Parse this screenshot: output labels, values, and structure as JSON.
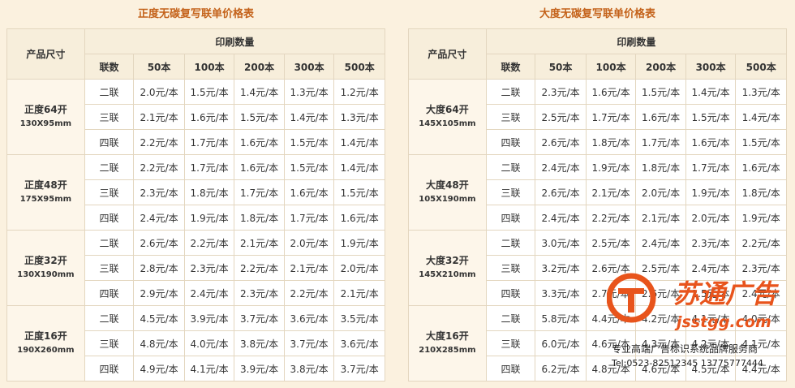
{
  "tables": [
    {
      "title": "正度无碳复写联单价格表",
      "header": {
        "size": "产品尺寸",
        "quantity": "印刷数量",
        "sets": "联数",
        "columns": [
          "50本",
          "100本",
          "200本",
          "300本",
          "500本"
        ]
      },
      "groups": [
        {
          "name": "正度64开",
          "dims": "130X95mm",
          "rows": [
            {
              "sets": "二联",
              "prices": [
                "2.0元/本",
                "1.5元/本",
                "1.4元/本",
                "1.3元/本",
                "1.2元/本"
              ]
            },
            {
              "sets": "三联",
              "prices": [
                "2.1元/本",
                "1.6元/本",
                "1.5元/本",
                "1.4元/本",
                "1.3元/本"
              ]
            },
            {
              "sets": "四联",
              "prices": [
                "2.2元/本",
                "1.7元/本",
                "1.6元/本",
                "1.5元/本",
                "1.4元/本"
              ]
            }
          ]
        },
        {
          "name": "正度48开",
          "dims": "175X95mm",
          "rows": [
            {
              "sets": "二联",
              "prices": [
                "2.2元/本",
                "1.7元/本",
                "1.6元/本",
                "1.5元/本",
                "1.4元/本"
              ]
            },
            {
              "sets": "三联",
              "prices": [
                "2.3元/本",
                "1.8元/本",
                "1.7元/本",
                "1.6元/本",
                "1.5元/本"
              ]
            },
            {
              "sets": "四联",
              "prices": [
                "2.4元/本",
                "1.9元/本",
                "1.8元/本",
                "1.7元/本",
                "1.6元/本"
              ]
            }
          ]
        },
        {
          "name": "正度32开",
          "dims": "130X190mm",
          "rows": [
            {
              "sets": "二联",
              "prices": [
                "2.6元/本",
                "2.2元/本",
                "2.1元/本",
                "2.0元/本",
                "1.9元/本"
              ]
            },
            {
              "sets": "三联",
              "prices": [
                "2.8元/本",
                "2.3元/本",
                "2.2元/本",
                "2.1元/本",
                "2.0元/本"
              ]
            },
            {
              "sets": "四联",
              "prices": [
                "2.9元/本",
                "2.4元/本",
                "2.3元/本",
                "2.2元/本",
                "2.1元/本"
              ]
            }
          ]
        },
        {
          "name": "正度16开",
          "dims": "190X260mm",
          "rows": [
            {
              "sets": "二联",
              "prices": [
                "4.5元/本",
                "3.9元/本",
                "3.7元/本",
                "3.6元/本",
                "3.5元/本"
              ]
            },
            {
              "sets": "三联",
              "prices": [
                "4.8元/本",
                "4.0元/本",
                "3.8元/本",
                "3.7元/本",
                "3.6元/本"
              ]
            },
            {
              "sets": "四联",
              "prices": [
                "4.9元/本",
                "4.1元/本",
                "3.9元/本",
                "3.8元/本",
                "3.7元/本"
              ]
            }
          ]
        }
      ]
    },
    {
      "title": "大度无碳复写联单价格表",
      "header": {
        "size": "产品尺寸",
        "quantity": "印刷数量",
        "sets": "联数",
        "columns": [
          "50本",
          "100本",
          "200本",
          "300本",
          "500本"
        ]
      },
      "groups": [
        {
          "name": "大度64开",
          "dims": "145X105mm",
          "rows": [
            {
              "sets": "二联",
              "prices": [
                "2.3元/本",
                "1.6元/本",
                "1.5元/本",
                "1.4元/本",
                "1.3元/本"
              ]
            },
            {
              "sets": "三联",
              "prices": [
                "2.5元/本",
                "1.7元/本",
                "1.6元/本",
                "1.5元/本",
                "1.4元/本"
              ]
            },
            {
              "sets": "四联",
              "prices": [
                "2.6元/本",
                "1.8元/本",
                "1.7元/本",
                "1.6元/本",
                "1.5元/本"
              ]
            }
          ]
        },
        {
          "name": "大度48开",
          "dims": "105X190mm",
          "rows": [
            {
              "sets": "二联",
              "prices": [
                "2.4元/本",
                "1.9元/本",
                "1.8元/本",
                "1.7元/本",
                "1.6元/本"
              ]
            },
            {
              "sets": "三联",
              "prices": [
                "2.6元/本",
                "2.1元/本",
                "2.0元/本",
                "1.9元/本",
                "1.8元/本"
              ]
            },
            {
              "sets": "四联",
              "prices": [
                "2.4元/本",
                "2.2元/本",
                "2.1元/本",
                "2.0元/本",
                "1.9元/本"
              ]
            }
          ]
        },
        {
          "name": "大度32开",
          "dims": "145X210mm",
          "rows": [
            {
              "sets": "二联",
              "prices": [
                "3.0元/本",
                "2.5元/本",
                "2.4元/本",
                "2.3元/本",
                "2.2元/本"
              ]
            },
            {
              "sets": "三联",
              "prices": [
                "3.2元/本",
                "2.6元/本",
                "2.5元/本",
                "2.4元/本",
                "2.3元/本"
              ]
            },
            {
              "sets": "四联",
              "prices": [
                "3.3元/本",
                "2.7元/本",
                "2.6元/本",
                "2.5元/本",
                "2.4元/本"
              ]
            }
          ]
        },
        {
          "name": "大度16开",
          "dims": "210X285mm",
          "rows": [
            {
              "sets": "二联",
              "prices": [
                "5.8元/本",
                "4.4元/本",
                "4.2元/本",
                "4.1元/本",
                "4.0元/本"
              ]
            },
            {
              "sets": "三联",
              "prices": [
                "6.0元/本",
                "4.6元/本",
                "4.3元/本",
                "4.2元/本",
                "4.1元/本"
              ]
            },
            {
              "sets": "四联",
              "prices": [
                "6.2元/本",
                "4.8元/本",
                "4.6元/本",
                "4.5元/本",
                "4.4元/本"
              ]
            }
          ]
        }
      ]
    }
  ],
  "watermark": {
    "brand": "苏通广告",
    "site": "jsstgg.com",
    "slogan": "专业高端广告标识系统品牌服务商",
    "contact": "Tel:0523-82512345  13775777444"
  }
}
